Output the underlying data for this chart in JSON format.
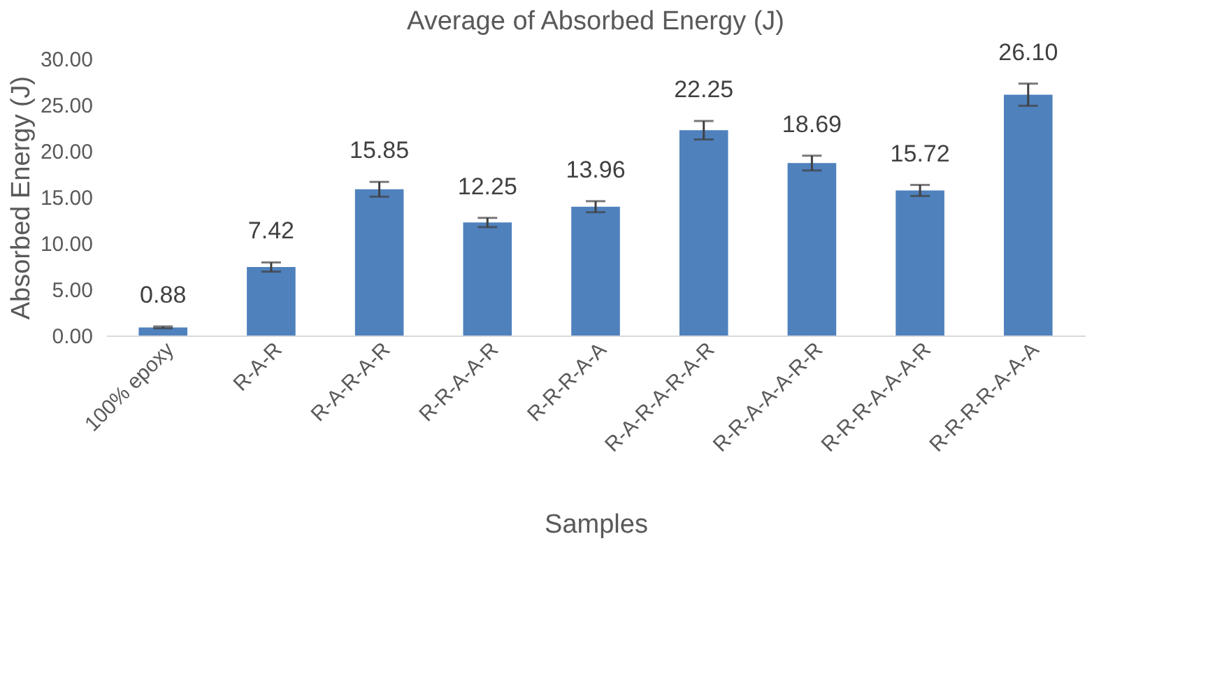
{
  "chart_data": {
    "type": "bar",
    "title": "Average of Absorbed Energy (J)",
    "xlabel": "Samples",
    "ylabel": "Absorbed Energy (J)",
    "categories": [
      "100% epoxy",
      "R-A-R",
      "R-A-R-A-R",
      "R-R-A-A-R",
      "R-R-R-A-A",
      "R-A-R-A-R-A-R",
      "R-R-A-A-A-R-R",
      "R-R-R-A-A-A-R",
      "R-R-R-R-A-A-A"
    ],
    "values": [
      0.88,
      7.42,
      15.85,
      12.25,
      13.96,
      22.25,
      18.69,
      15.72,
      26.1
    ],
    "errors": [
      0.1,
      0.5,
      0.8,
      0.5,
      0.6,
      1.0,
      0.8,
      0.6,
      1.2
    ],
    "color": "#4f81bd",
    "value_labels": [
      "0.88",
      "7.42",
      "15.85",
      "12.25",
      "13.96",
      "22.25",
      "18.69",
      "15.72",
      "26.10"
    ],
    "ylim": [
      0,
      30
    ],
    "yticks": [
      {
        "value": 0,
        "label": "0.00"
      },
      {
        "value": 5,
        "label": "5.00"
      },
      {
        "value": 10,
        "label": "10.00"
      },
      {
        "value": 15,
        "label": "15.00"
      },
      {
        "value": 20,
        "label": "20.00"
      },
      {
        "value": 25,
        "label": "25.00"
      },
      {
        "value": 30,
        "label": "30.00"
      }
    ],
    "grid": false
  }
}
